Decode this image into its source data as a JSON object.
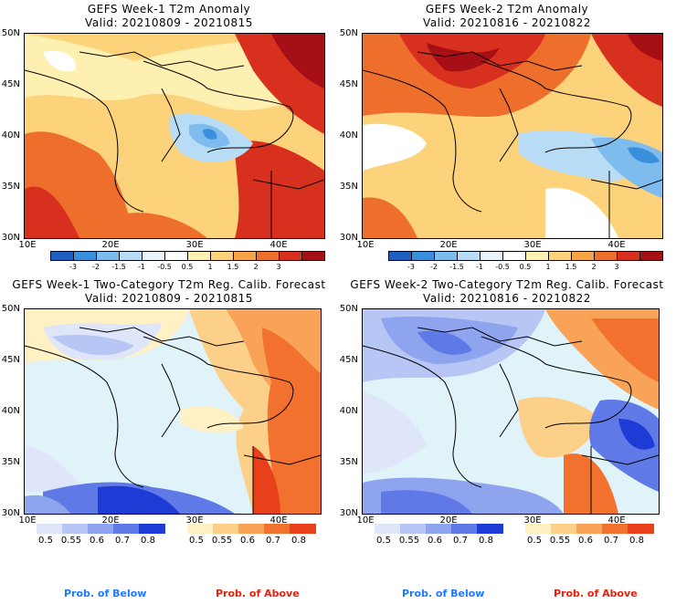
{
  "panels": [
    {
      "title1": "GEFS Week-1 T2m Anomaly",
      "title2": "Valid: 20210809 - 20210815",
      "kind": "anomaly"
    },
    {
      "title1": "GEFS Week-2 T2m Anomaly",
      "title2": "Valid: 20210816 - 20210822",
      "kind": "anomaly"
    },
    {
      "title1": "GEFS Week-1 Two-Category T2m Reg. Calib. Forecast",
      "title2": "Valid: 20210809 - 20210815",
      "kind": "prob"
    },
    {
      "title1": "GEFS Week-2 Two-Category T2m Reg. Calib. Forecast",
      "title2": "Valid: 20210816 - 20210822",
      "kind": "prob"
    }
  ],
  "axes": {
    "lat_labels": [
      "50N",
      "45N",
      "40N",
      "35N",
      "30N"
    ],
    "lon_labels": [
      "10E",
      "20E",
      "30E",
      "40E"
    ]
  },
  "anomaly_legend": {
    "labels": [
      "-3",
      "-2",
      "-1.5",
      "-1",
      "-0.5",
      "0.5",
      "1",
      "1.5",
      "2",
      "3"
    ],
    "colors": [
      "#1c5fbf",
      "#3a8fdc",
      "#7fbcee",
      "#b8dcf6",
      "#e8f4fc",
      "#ffffff",
      "#fdf0b0",
      "#fcd27a",
      "#f7a647",
      "#ee6e2c",
      "#d7301f",
      "#a50f15"
    ]
  },
  "prob_legend": {
    "below_labels": [
      "0.5",
      "0.55",
      "0.6",
      "0.7",
      "0.8"
    ],
    "below_colors": [
      "#dfe6fa",
      "#b7c6f5",
      "#8ea4ee",
      "#5f79e6",
      "#1f3bd6"
    ],
    "above_labels": [
      "0.5",
      "0.55",
      "0.6",
      "0.7",
      "0.8"
    ],
    "above_colors": [
      "#fff1c4",
      "#fdd08a",
      "#f8a358",
      "#f2712e",
      "#e8401a"
    ],
    "below_text": "Prob. of Below",
    "above_text": "Prob. of Above",
    "below_color": "#1f78ff",
    "above_color": "#e8200c"
  }
}
